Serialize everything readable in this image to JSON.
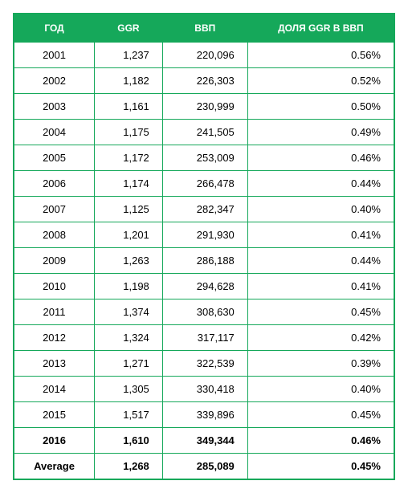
{
  "table": {
    "header_bg": "#15a85a",
    "header_color": "#ffffff",
    "border_color": "#15a85a",
    "row_border_color": "#15a85a",
    "columns": [
      "ГОД",
      "GGR",
      "ВВП",
      "ДОЛЯ GGR В ВВП"
    ],
    "col_align": [
      "center",
      "right",
      "right",
      "right"
    ],
    "rows": [
      {
        "year": "2001",
        "ggr": "1,237",
        "vvp": "220,096",
        "share": "0.56%",
        "bold": false
      },
      {
        "year": "2002",
        "ggr": "1,182",
        "vvp": "226,303",
        "share": "0.52%",
        "bold": false
      },
      {
        "year": "2003",
        "ggr": "1,161",
        "vvp": "230,999",
        "share": "0.50%",
        "bold": false
      },
      {
        "year": "2004",
        "ggr": "1,175",
        "vvp": "241,505",
        "share": "0.49%",
        "bold": false
      },
      {
        "year": "2005",
        "ggr": "1,172",
        "vvp": "253,009",
        "share": "0.46%",
        "bold": false
      },
      {
        "year": "2006",
        "ggr": "1,174",
        "vvp": "266,478",
        "share": "0.44%",
        "bold": false
      },
      {
        "year": "2007",
        "ggr": "1,125",
        "vvp": "282,347",
        "share": "0.40%",
        "bold": false
      },
      {
        "year": "2008",
        "ggr": "1,201",
        "vvp": "291,930",
        "share": "0.41%",
        "bold": false
      },
      {
        "year": "2009",
        "ggr": "1,263",
        "vvp": "286,188",
        "share": "0.44%",
        "bold": false
      },
      {
        "year": "2010",
        "ggr": "1,198",
        "vvp": "294,628",
        "share": "0.41%",
        "bold": false
      },
      {
        "year": "2011",
        "ggr": "1,374",
        "vvp": "308,630",
        "share": "0.45%",
        "bold": false
      },
      {
        "year": "2012",
        "ggr": "1,324",
        "vvp": "317,117",
        "share": "0.42%",
        "bold": false
      },
      {
        "year": "2013",
        "ggr": "1,271",
        "vvp": "322,539",
        "share": "0.39%",
        "bold": false
      },
      {
        "year": "2014",
        "ggr": "1,305",
        "vvp": "330,418",
        "share": "0.40%",
        "bold": false
      },
      {
        "year": "2015",
        "ggr": "1,517",
        "vvp": "339,896",
        "share": "0.45%",
        "bold": false
      },
      {
        "year": "2016",
        "ggr": "1,610",
        "vvp": "349,344",
        "share": "0.46%",
        "bold": true
      },
      {
        "year": "Average",
        "ggr": "1,268",
        "vvp": "285,089",
        "share": "0.45%",
        "bold": true
      }
    ]
  }
}
